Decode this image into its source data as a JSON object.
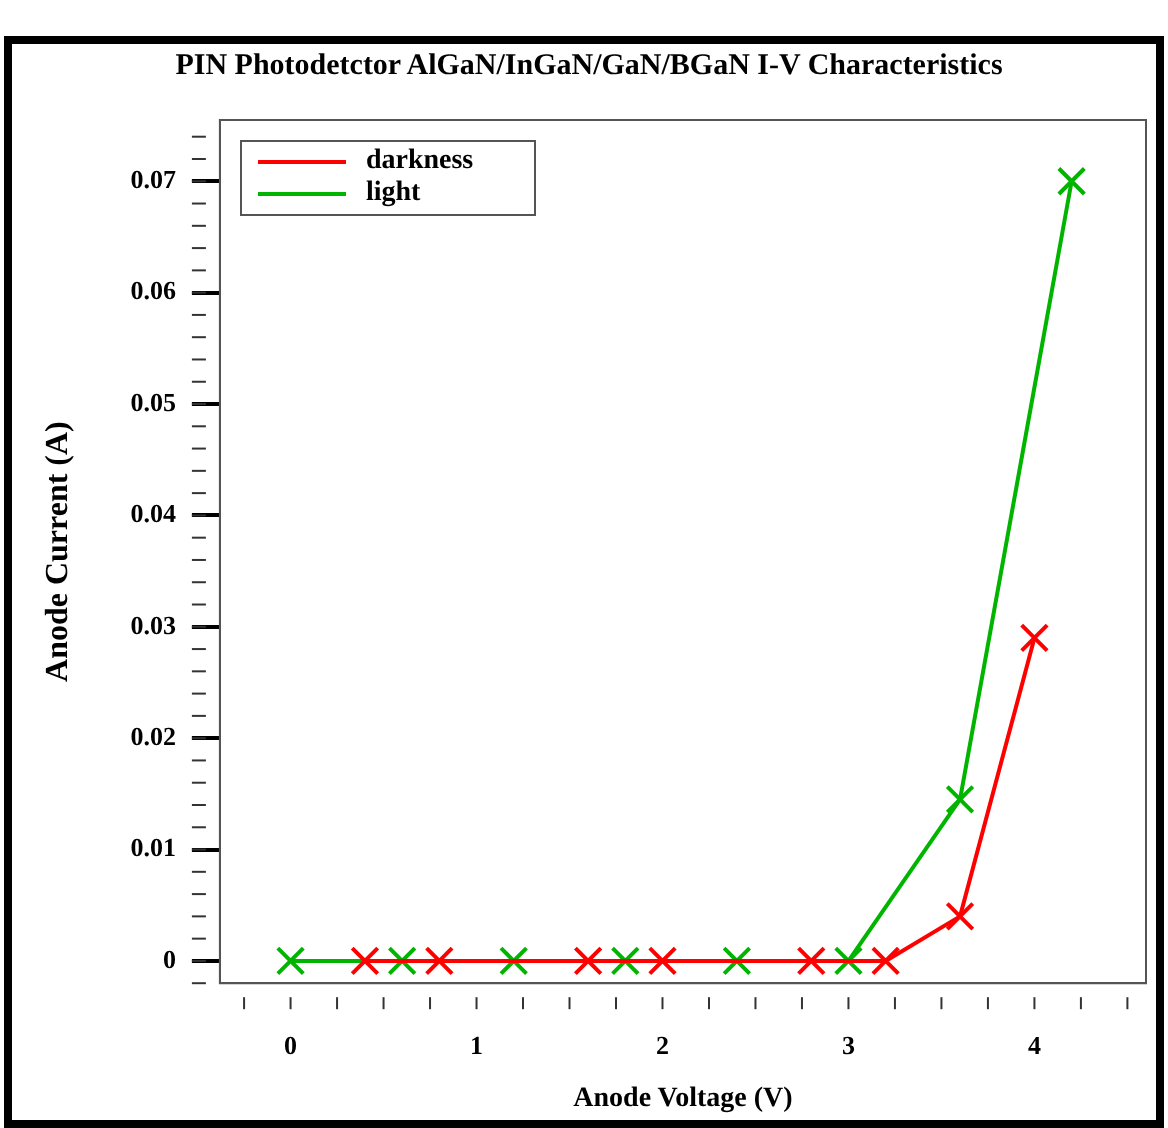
{
  "chart_data": {
    "type": "line",
    "title": "PIN Photodetctor AlGaN/InGaN/GaN/BGaN I-V Characteristics",
    "xlabel": "Anode Voltage (V)",
    "ylabel": "Anode Current (A)",
    "xlim": [
      -0.38,
      4.6
    ],
    "xticks": [
      0,
      1,
      2,
      3,
      4
    ],
    "ylim": [
      -0.002,
      0.0755
    ],
    "yticks": [
      0,
      0.01,
      0.02,
      0.03,
      0.04,
      0.05,
      0.06,
      0.07
    ],
    "series": [
      {
        "name": "darkness",
        "color": "#ff0000",
        "x": [
          0.4,
          0.8,
          1.6,
          2.0,
          2.8,
          3.2,
          3.6,
          4.0
        ],
        "values": [
          0,
          0,
          0,
          0,
          0,
          0,
          0.004,
          0.029
        ]
      },
      {
        "name": "light",
        "color": "#00b400",
        "x": [
          0,
          0.6,
          1.2,
          1.8,
          2.4,
          3.0,
          3.6,
          4.2
        ],
        "values": [
          0,
          0,
          0,
          0,
          0,
          0,
          0.0145,
          0.07
        ]
      }
    ],
    "marker": "cross",
    "line_style": "solid",
    "grid": false,
    "legend": "top left"
  }
}
